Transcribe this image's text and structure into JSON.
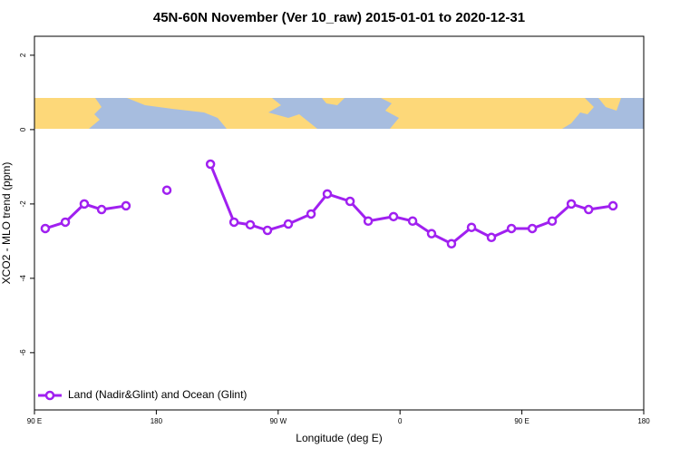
{
  "chart_data": {
    "type": "line",
    "title": "45N-60N November (Ver 10_raw)   2015-01-01 to 2020-12-31",
    "x_label": "Longitude (deg E)",
    "y_label": "XCO2 - MLO trend (ppm)",
    "xlim": [
      90,
      540
    ],
    "ylim": [
      -7.54,
      2.51
    ],
    "xticks": [
      {
        "value": 90,
        "label": "90 E"
      },
      {
        "value": 180,
        "label": "180"
      },
      {
        "value": 270,
        "label": "90 W"
      },
      {
        "value": 360,
        "label": "0"
      },
      {
        "value": 450,
        "label": "90 E"
      },
      {
        "value": 540,
        "label": "180"
      }
    ],
    "yticks": [
      2,
      0,
      -2,
      -4,
      -6
    ],
    "legend": "bottom-left",
    "series": [
      {
        "name": "Land (Nadir&Glint) and Ocean (Glint)",
        "color": "#a020f0",
        "x": [
          98,
          112.8,
          126.8,
          139.6,
          157.6,
          172.5,
          187.8,
          204,
          220,
          237.4,
          249.4,
          262.1,
          277.5,
          294.3,
          306.3,
          323.1,
          336.5,
          355.2,
          369.3,
          383.3,
          398,
          412.8,
          427.5,
          442.3,
          457.7,
          472.4,
          486.5,
          499.3,
          517.3
        ],
        "values": [
          -2.66,
          -2.49,
          -2.0,
          -2.15,
          -2.05,
          null,
          -1.63,
          null,
          -0.93,
          -2.49,
          -2.56,
          -2.71,
          -2.54,
          -2.27,
          -1.73,
          -1.93,
          -2.46,
          -2.34,
          -2.46,
          -2.8,
          -3.07,
          -2.63,
          -2.9,
          -2.66,
          -2.66,
          -2.46,
          -2.0,
          -2.15,
          -2.05
        ]
      }
    ]
  }
}
